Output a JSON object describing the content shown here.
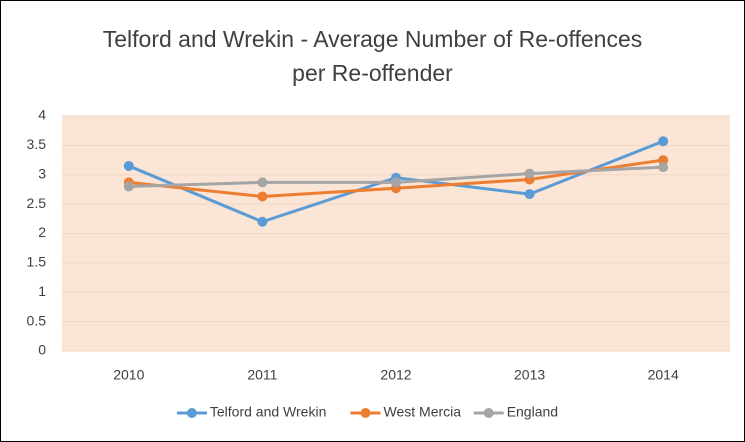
{
  "chart_data": {
    "type": "line",
    "title": "Telford and Wrekin - Average Number of Re-offences per Re-offender",
    "categories": [
      "2010",
      "2011",
      "2012",
      "2013",
      "2014"
    ],
    "series": [
      {
        "name": "Telford and Wrekin",
        "color": "#5b9bd5",
        "values": [
          3.15,
          2.2,
          2.95,
          2.67,
          3.57
        ]
      },
      {
        "name": "West Mercia",
        "color": "#ed7d31",
        "values": [
          2.87,
          2.63,
          2.77,
          2.92,
          3.25
        ]
      },
      {
        "name": "England",
        "color": "#a5a5a5",
        "values": [
          2.8,
          2.87,
          2.87,
          3.02,
          3.13
        ]
      }
    ],
    "ylim": [
      0,
      4
    ],
    "yticks": [
      0,
      0.5,
      1,
      1.5,
      2,
      2.5,
      3,
      3.5,
      4
    ],
    "grid": true,
    "legend": "bottom"
  }
}
